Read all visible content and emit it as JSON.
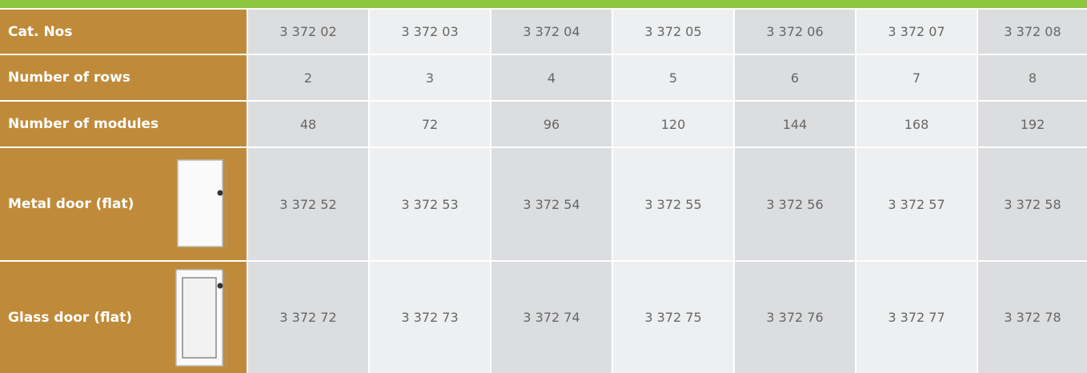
{
  "table": {
    "rows": [
      {
        "label": "Cat. Nos",
        "cells": [
          "3 372 02",
          "3 372 03",
          "3 372 04",
          "3 372 05",
          "3 372 06",
          "3 372 07",
          "3 372 08"
        ]
      },
      {
        "label": "Number of rows",
        "cells": [
          2,
          3,
          4,
          5,
          6,
          7,
          8
        ]
      },
      {
        "label": "Number of modules",
        "cells": [
          48,
          72,
          96,
          120,
          144,
          168,
          192
        ]
      },
      {
        "label": "Metal door (flat)",
        "cells": [
          "3 372 52",
          "3 372 53",
          "3 372 54",
          "3 372 55",
          "3 372 56",
          "3 372 57",
          "3 372 58"
        ]
      },
      {
        "label": "Glass door (flat)",
        "cells": [
          "3 372 72",
          "3 372 73",
          "3 372 74",
          "3 372 75",
          "3 372 76",
          "3 372 77",
          "3 372 78"
        ]
      }
    ]
  }
}
